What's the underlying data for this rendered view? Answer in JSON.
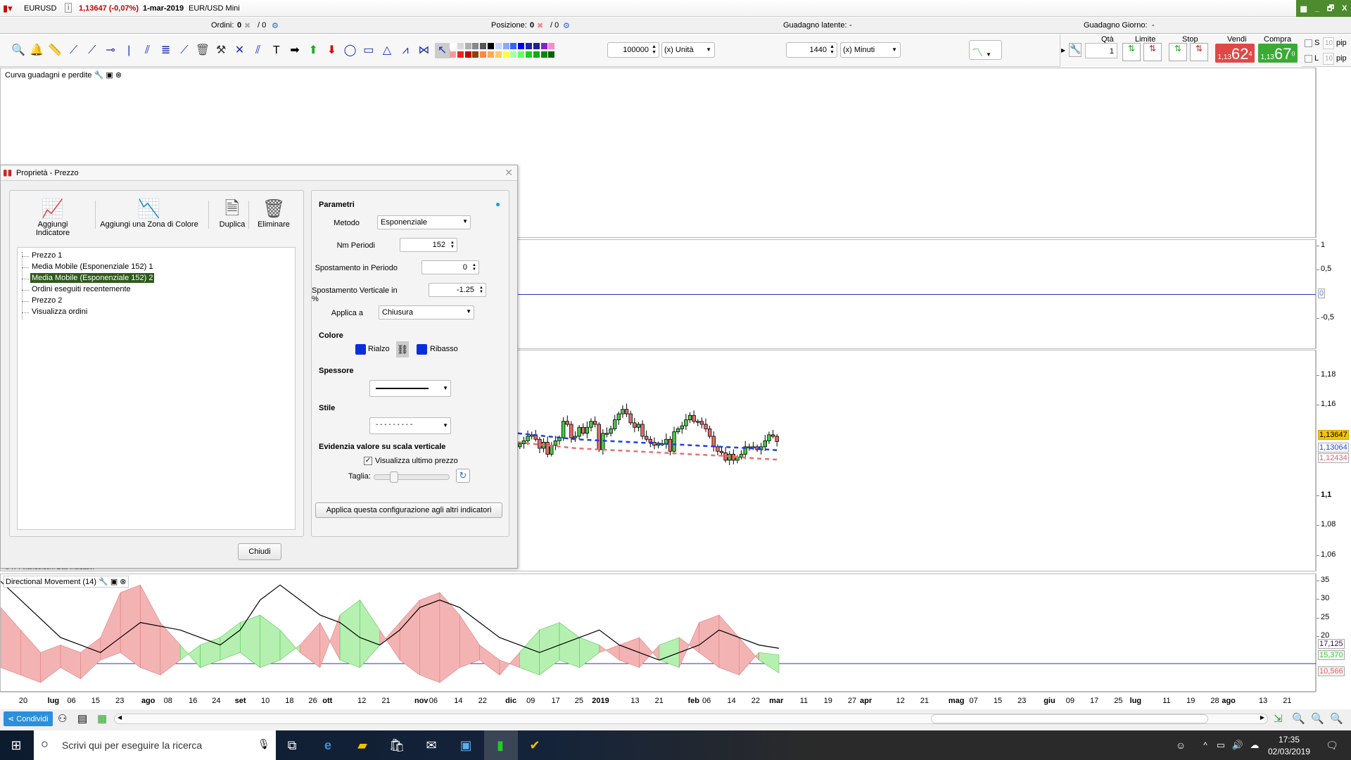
{
  "titlebar": {
    "symbol": "EURUSD",
    "price_change": "1,13647 (-0,07%)",
    "date": "1-mar-2019",
    "instrument": "EUR/USD Mini",
    "controls": [
      "▦",
      "_",
      "🗗",
      "X"
    ]
  },
  "infobar": {
    "orders_label": "Ordini:",
    "orders_value": "0",
    "orders_sep": "/ 0",
    "position_label": "Posizione:",
    "position_value": "0",
    "position_sep": "/ 0",
    "latent_label": "Guadagno latente:",
    "latent_value": "-",
    "day_label": "Guadagno Giorno:",
    "day_value": "-"
  },
  "toolbar": {
    "icons": [
      "search-icon",
      "alarm-bell-icon",
      "ruler-icon",
      "trendline-icon",
      "ray-icon",
      "horizontal-line-icon",
      "vertical-line-icon",
      "parallel-channel-icon",
      "fibonacci-icon",
      "regression-channel-icon",
      "trash-icon",
      "tools-icon",
      "cross-line-icon",
      "angled-lines-icon",
      "text-icon",
      "arrow-right-icon",
      "arrow-up-green-icon",
      "arrow-down-red-icon",
      "ellipse-icon",
      "rectangle-icon",
      "triangle-icon",
      "zigzag-icon",
      "fan-icon",
      "pointer-icon"
    ],
    "palette_top": [
      "#ffffff",
      "#d8d8d8",
      "#b0b0b0",
      "#888888",
      "#555555",
      "#000000",
      "#c4d4ff",
      "#88aaff",
      "#3366ff",
      "#0000ee",
      "#2222aa",
      "#222288",
      "#8822cc",
      "#ff88cc"
    ],
    "palette_bottom": [
      "#ff9999",
      "#ee2222",
      "#cc0000",
      "#884400",
      "#ff8844",
      "#ffaa55",
      "#ffcc66",
      "#ffff44",
      "#aaffaa",
      "#66ff66",
      "#22cc22",
      "#11aa11",
      "#008800",
      "#006600"
    ],
    "quantity": "100000",
    "quantity_unit": "(x) Unità",
    "interval": "1440",
    "interval_unit": "(x) Minuti"
  },
  "trade": {
    "qty_label": "Qtà",
    "qty": "1",
    "limit_label": "Limite",
    "stop_label": "Stop",
    "sell_label": "Vendi",
    "sell_prefix": "1,13",
    "sell_big": "62",
    "sell_sup": "4",
    "buy_label": "Compra",
    "buy_prefix": "1,13",
    "buy_big": "67",
    "buy_sup": "0",
    "s_label": "S",
    "l_label": "L",
    "s_pips": "10",
    "l_pips": "10",
    "pip": "pip",
    "sell_color": "#e04848",
    "buy_color": "#3aaa35"
  },
  "panels": {
    "equity_label": "Curva guadagni e perdite",
    "dm_label": "Directional Movement (14)",
    "copyright": "© IT-Finance.com Dati indicativi"
  },
  "axes": {
    "osc_ticks": [
      "1",
      "0,5",
      "-0,5"
    ],
    "osc_zero": "0",
    "price_ticks": [
      "1,18",
      "1,16",
      "1,1",
      "1,08",
      "1,06"
    ],
    "price_last": "1,13647",
    "ma1_last": "1,13064",
    "ma2_last": "1,12434",
    "dm_ticks": [
      "35",
      "30",
      "25",
      "20"
    ],
    "adx_last": "17,125",
    "plus_last": "15,370",
    "minus_last": "10,566"
  },
  "dates": [
    "20",
    "lug",
    "06",
    "15",
    "23",
    "ago",
    "08",
    "16",
    "24",
    "set",
    "10",
    "18",
    "26",
    "ott",
    "12",
    "21",
    "nov",
    "06",
    "14",
    "22",
    "dic",
    "09",
    "17",
    "25",
    "2019",
    "13",
    "21",
    "feb",
    "06",
    "14",
    "22",
    "mar",
    "11",
    "19",
    "27",
    "apr",
    "12",
    "21",
    "mag",
    "07",
    "15",
    "23",
    "giu",
    "09",
    "17",
    "25",
    "lug",
    "11",
    "19",
    "28",
    "ago",
    "13",
    "21"
  ],
  "chart_data": {
    "type": "candlestick",
    "closes": [
      1.135,
      1.137,
      1.14,
      1.141,
      1.138,
      1.132,
      1.136,
      1.128,
      1.134,
      1.137,
      1.139,
      1.15,
      1.148,
      1.139,
      1.14,
      1.146,
      1.142,
      1.146,
      1.15,
      1.148,
      1.131,
      1.142,
      1.142,
      1.145,
      1.151,
      1.155,
      1.158,
      1.155,
      1.149,
      1.146,
      1.148,
      1.14,
      1.138,
      1.136,
      1.134,
      1.135,
      1.135,
      1.138,
      1.13,
      1.143,
      1.145,
      1.147,
      1.151,
      1.154,
      1.15,
      1.15,
      1.148,
      1.145,
      1.14,
      1.133,
      1.13,
      1.129,
      1.124,
      1.128,
      1.124,
      1.126,
      1.128,
      1.133,
      1.133,
      1.133,
      1.131,
      1.133,
      1.137,
      1.141,
      1.14,
      1.13647
    ],
    "ma1": [
      1.142,
      1.14,
      1.138,
      1.137,
      1.136,
      1.135,
      1.134,
      1.133,
      1.132,
      1.1306
    ],
    "ma2": [
      1.136,
      1.134,
      1.132,
      1.131,
      1.13,
      1.129,
      1.128,
      1.127,
      1.1255,
      1.1243
    ],
    "dm_plus": [
      12,
      10,
      8,
      12,
      9,
      14,
      16,
      12,
      10,
      14,
      18,
      20,
      24,
      26,
      22,
      16,
      12,
      26,
      30,
      22,
      14,
      10,
      8,
      12,
      14,
      10,
      16,
      22,
      24,
      20,
      18,
      14,
      12,
      18,
      20,
      16,
      12,
      10,
      16,
      15.37
    ],
    "dm_minus": [
      28,
      22,
      16,
      18,
      16,
      20,
      32,
      34,
      24,
      18,
      12,
      14,
      16,
      12,
      14,
      18,
      24,
      14,
      12,
      18,
      24,
      30,
      32,
      26,
      18,
      14,
      12,
      10,
      14,
      12,
      16,
      18,
      20,
      14,
      12,
      24,
      26,
      20,
      14,
      10.566
    ],
    "adx": [
      35,
      30,
      25,
      20,
      18,
      16,
      20,
      24,
      23,
      22,
      20,
      18,
      22,
      30,
      34,
      30,
      26,
      24,
      20,
      18,
      22,
      28,
      30,
      28,
      24,
      20,
      18,
      16,
      18,
      20,
      22,
      18,
      16,
      14,
      16,
      18,
      22,
      20,
      18,
      17.125
    ]
  },
  "dialog": {
    "title": "Proprietà - Prezzo",
    "add_indicator": "Aggiungi Indicatore",
    "add_zone": "Aggiungi una Zona di Colore",
    "duplicate": "Duplica",
    "delete": "Eliminare",
    "tree": [
      "Prezzo 1",
      "Media Mobile (Esponenziale 152) 1",
      "Media Mobile (Esponenziale 152) 2",
      "Ordini eseguiti recentemente",
      "Prezzo 2",
      "Visualizza ordini"
    ],
    "selected_index": 2,
    "params_header": "Parametri",
    "method_label": "Metodo",
    "method": "Esponenziale",
    "periods_label": "Nm Periodi",
    "periods": "152",
    "shift_label": "Spostamento in Periodo",
    "shift": "0",
    "vshift_label": "Spostamento Verticale in %",
    "vshift": "-1.25",
    "apply_label": "Applica a",
    "apply": "Chiusura",
    "color_header": "Colore",
    "up_label": "Rialzo",
    "down_label": "Ribasso",
    "up_color": "#0a2fd8",
    "down_color": "#0a2fd8",
    "thickness_header": "Spessore",
    "style_header": "Stile",
    "style_value": "- - - - - - - - -",
    "highlight_header": "Evidenzia valore su scala verticale",
    "show_last": "Visualizza ultimo prezzo",
    "show_last_checked": true,
    "size_label": "Taglia:",
    "size_value": 0.25,
    "apply_all": "Applica questa configurazione agli altri indicatori",
    "close": "Chiudi"
  },
  "bottom": {
    "share": "Condividi"
  },
  "taskbar": {
    "search_placeholder": "Scrivi qui per eseguire la ricerca",
    "time": "17:35",
    "date": "02/03/2019"
  }
}
